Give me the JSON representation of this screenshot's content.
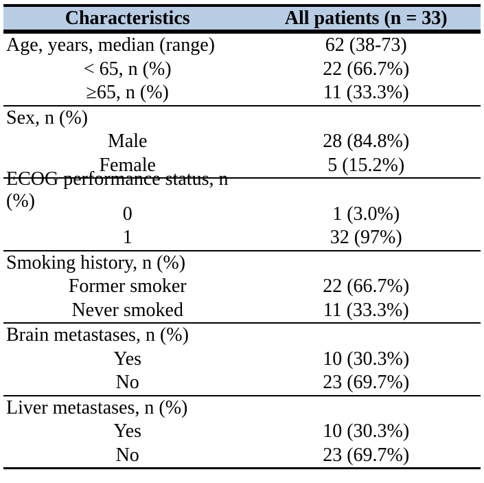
{
  "colors": {
    "header_bg": "#b8cce4",
    "border": "#000000",
    "text": "#000000"
  },
  "table": {
    "columns": [
      "Characteristics",
      "All patients (n = 33)"
    ],
    "groups": [
      {
        "rows": [
          {
            "label": "Age, years, median (range)",
            "value": "62 (38-73)",
            "indent": false
          },
          {
            "label": "< 65, n (%)",
            "value": "22 (66.7%)",
            "indent": true
          },
          {
            "label": "≥65, n (%)",
            "value": "11 (33.3%)",
            "indent": true
          }
        ]
      },
      {
        "rows": [
          {
            "label": "Sex, n (%)",
            "value": "",
            "indent": false
          },
          {
            "label": "Male",
            "value": "28 (84.8%)",
            "indent": true
          },
          {
            "label": "Female",
            "value": "5 (15.2%)",
            "indent": true
          }
        ]
      },
      {
        "rows": [
          {
            "label": "ECOG performance status, n (%)",
            "value": "",
            "indent": false
          },
          {
            "label": "0",
            "value": "1 (3.0%)",
            "indent": true
          },
          {
            "label": "1",
            "value": "32 (97%)",
            "indent": true
          }
        ]
      },
      {
        "rows": [
          {
            "label": "Smoking history, n (%)",
            "value": "",
            "indent": false
          },
          {
            "label": "Former smoker",
            "value": "22 (66.7%)",
            "indent": true
          },
          {
            "label": "Never smoked",
            "value": "11 (33.3%)",
            "indent": true
          }
        ]
      },
      {
        "rows": [
          {
            "label": "Brain metastases, n (%)",
            "value": "",
            "indent": false
          },
          {
            "label": "Yes",
            "value": "10 (30.3%)",
            "indent": true
          },
          {
            "label": "No",
            "value": "23 (69.7%)",
            "indent": true
          }
        ]
      },
      {
        "rows": [
          {
            "label": "Liver metastases, n (%)",
            "value": "",
            "indent": false
          },
          {
            "label": "Yes",
            "value": "10 (30.3%)",
            "indent": true
          },
          {
            "label": "No",
            "value": "23 (69.7%)",
            "indent": true
          }
        ]
      }
    ]
  }
}
